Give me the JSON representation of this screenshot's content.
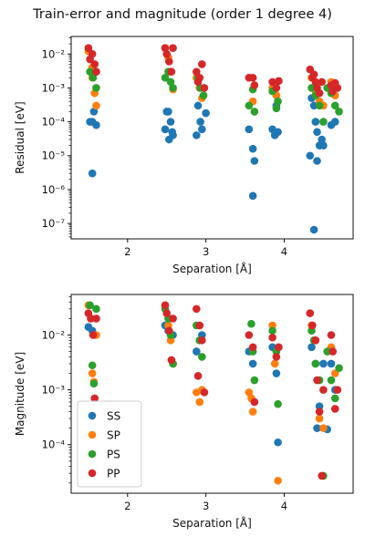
{
  "figure": {
    "title": "Train-error and magnitude (order 1 degree 4)"
  },
  "chart_data": [
    {
      "type": "scatter",
      "title": "",
      "xlabel": "Separation [Å]",
      "ylabel": "Residual [eV]",
      "yscale": "log",
      "xlim": [
        1.28,
        4.88
      ],
      "ylim": [
        3.5e-08,
        0.033
      ],
      "xticks": [
        2,
        3,
        4
      ],
      "yticks": [
        1e-07,
        1e-06,
        1e-05,
        0.0001,
        0.001,
        0.01
      ],
      "series": [
        {
          "name": "SS",
          "color": "#1f77b4",
          "x": [
            1.52,
            1.55,
            1.57,
            1.6,
            1.55,
            2.5,
            2.52,
            2.55,
            2.57,
            2.58,
            2.48,
            2.53,
            2.9,
            2.93,
            2.95,
            2.88,
            3.0,
            3.55,
            3.6,
            3.62,
            3.6,
            3.85,
            3.88,
            3.9,
            3.92,
            4.35,
            4.38,
            4.4,
            4.42,
            4.45,
            4.48,
            4.5,
            4.33,
            4.42,
            4.6,
            4.65,
            4.38
          ],
          "y": [
            0.0001,
            0.0001,
            0.0002,
            8e-05,
            3e-06,
            0.0002,
            0.0002,
            0.0001,
            5e-05,
            4e-05,
            6e-05,
            3e-05,
            0.0003,
            0.0001,
            6e-05,
            4e-05,
            0.00018,
            6e-05,
            1.6e-05,
            7e-06,
            6.5e-07,
            6e-05,
            4e-05,
            0.0003,
            5e-05,
            0.0005,
            0.0003,
            0.0001,
            5e-05,
            2e-05,
            3e-05,
            2e-05,
            1e-05,
            7e-06,
            8e-05,
            0.0001,
            6.5e-08
          ]
        },
        {
          "name": "SP",
          "color": "#ff7f0e",
          "x": [
            1.5,
            1.55,
            1.58,
            1.6,
            1.55,
            2.48,
            2.52,
            2.55,
            2.58,
            2.88,
            2.92,
            2.95,
            3.55,
            3.6,
            3.85,
            3.9,
            4.35,
            4.4,
            4.45,
            4.5,
            4.6,
            4.65
          ],
          "y": [
            0.012,
            0.002,
            0.0007,
            0.0003,
            0.004,
            0.015,
            0.008,
            0.003,
            0.0009,
            0.002,
            0.001,
            0.0005,
            0.002,
            0.0004,
            0.001,
            0.0006,
            0.002,
            0.0008,
            0.0004,
            0.0003,
            0.0015,
            0.0006
          ]
        },
        {
          "name": "PS",
          "color": "#2ca02c",
          "x": [
            1.52,
            1.56,
            1.6,
            2.48,
            2.52,
            2.55,
            2.58,
            2.9,
            2.93,
            2.97,
            3.55,
            3.6,
            3.62,
            3.85,
            3.9,
            3.92,
            4.35,
            4.4,
            4.45,
            4.5,
            4.55,
            4.6,
            4.65,
            4.7
          ],
          "y": [
            0.003,
            0.002,
            0.001,
            0.002,
            0.003,
            0.0015,
            0.001,
            0.002,
            0.001,
            0.0006,
            0.0003,
            0.0009,
            0.0002,
            0.0008,
            0.00025,
            0.0004,
            0.001,
            0.0006,
            0.0003,
            0.0001,
            0.001,
            0.0007,
            0.0003,
            0.0002
          ]
        },
        {
          "name": "PP",
          "color": "#d62728",
          "x": [
            1.5,
            1.55,
            1.58,
            1.6,
            1.52,
            2.48,
            2.5,
            2.53,
            2.56,
            2.58,
            2.88,
            2.92,
            2.95,
            2.98,
            2.9,
            3.55,
            3.6,
            3.62,
            3.85,
            3.9,
            3.93,
            4.33,
            4.36,
            4.4,
            4.42,
            4.45,
            4.48,
            4.6,
            4.62,
            4.65,
            4.68,
            4.38
          ],
          "y": [
            0.015,
            0.01,
            0.005,
            0.003,
            0.007,
            0.015,
            0.01,
            0.006,
            0.003,
            0.015,
            0.003,
            0.002,
            0.005,
            0.001,
            0.0015,
            0.002,
            0.002,
            0.0012,
            0.0015,
            0.001,
            0.0016,
            0.0035,
            0.002,
            0.0015,
            0.001,
            0.0007,
            0.0015,
            0.0012,
            0.0008,
            0.0014,
            0.001,
            0.0025
          ]
        }
      ]
    },
    {
      "type": "scatter",
      "title": "",
      "xlabel": "Separation [Å]",
      "ylabel": "Magnitude [eV]",
      "yscale": "log",
      "xlim": [
        1.28,
        4.88
      ],
      "ylim": [
        1.3e-05,
        0.055
      ],
      "xticks": [
        2,
        3,
        4
      ],
      "yticks": [
        0.0001,
        0.001,
        0.01
      ],
      "legend": {
        "position": "lower-left"
      },
      "series": [
        {
          "name": "SS",
          "color": "#1f77b4",
          "x": [
            1.5,
            1.55,
            1.58,
            2.48,
            2.52,
            2.55,
            2.58,
            2.88,
            2.92,
            2.95,
            3.55,
            3.6,
            3.85,
            3.9,
            3.92,
            4.35,
            4.4,
            4.45,
            4.5,
            4.6,
            4.65,
            4.55,
            4.42
          ],
          "y": [
            0.014,
            0.012,
            0.01,
            0.015,
            0.012,
            0.01,
            0.01,
            0.005,
            0.008,
            0.01,
            0.005,
            0.003,
            0.006,
            0.002,
            0.00011,
            0.006,
            0.003,
            0.0005,
            0.003,
            0.003,
            0.001,
            0.00019,
            0.0002
          ]
        },
        {
          "name": "SP",
          "color": "#ff7f0e",
          "x": [
            1.5,
            1.55,
            1.57,
            1.6,
            2.48,
            2.52,
            2.55,
            2.58,
            2.88,
            2.92,
            2.95,
            3.55,
            3.58,
            3.6,
            3.85,
            3.88,
            3.92,
            4.35,
            4.4,
            4.45,
            4.5,
            4.6,
            4.65
          ],
          "y": [
            0.035,
            0.002,
            0.0014,
            0.01,
            0.035,
            0.015,
            0.008,
            0.003,
            0.0009,
            0.0006,
            0.001,
            0.0009,
            0.0007,
            0.0004,
            0.015,
            0.003,
            2.2e-05,
            0.015,
            0.008,
            0.0003,
            0.0002,
            0.006,
            0.002
          ]
        },
        {
          "name": "PS",
          "color": "#2ca02c",
          "x": [
            1.52,
            1.55,
            1.57,
            1.6,
            2.48,
            2.52,
            2.55,
            2.58,
            2.88,
            2.92,
            2.95,
            3.58,
            3.6,
            3.62,
            3.85,
            3.9,
            3.92,
            4.35,
            4.38,
            4.4,
            4.45,
            4.5,
            4.55,
            4.6,
            4.65,
            4.7
          ],
          "y": [
            0.035,
            0.0028,
            0.0013,
            0.03,
            0.03,
            0.02,
            0.01,
            0.003,
            0.015,
            0.008,
            0.004,
            0.016,
            0.005,
            0.0015,
            0.012,
            0.005,
            0.00055,
            0.012,
            0.008,
            0.003,
            0.0015,
            2.7e-05,
            0.005,
            0.0015,
            0.0007,
            0.0025
          ]
        },
        {
          "name": "PP",
          "color": "#d62728",
          "x": [
            1.5,
            1.53,
            1.56,
            1.6,
            1.58,
            2.48,
            2.5,
            2.53,
            2.56,
            2.58,
            2.88,
            2.92,
            2.95,
            2.98,
            2.9,
            3.55,
            3.6,
            3.62,
            3.85,
            3.9,
            3.93,
            4.33,
            4.36,
            4.4,
            4.42,
            4.45,
            4.48,
            4.6,
            4.62,
            4.65,
            4.68,
            4.5
          ],
          "y": [
            0.025,
            0.02,
            0.01,
            0.02,
            0.0007,
            0.035,
            0.025,
            0.012,
            0.0035,
            0.02,
            0.03,
            0.015,
            0.008,
            0.0009,
            0.0018,
            0.01,
            0.006,
            0.0006,
            0.009,
            0.004,
            0.006,
            0.025,
            0.015,
            0.008,
            0.0015,
            0.0004,
            2.7e-05,
            0.01,
            0.005,
            0.00045,
            0.001,
            0.001
          ]
        }
      ]
    }
  ]
}
